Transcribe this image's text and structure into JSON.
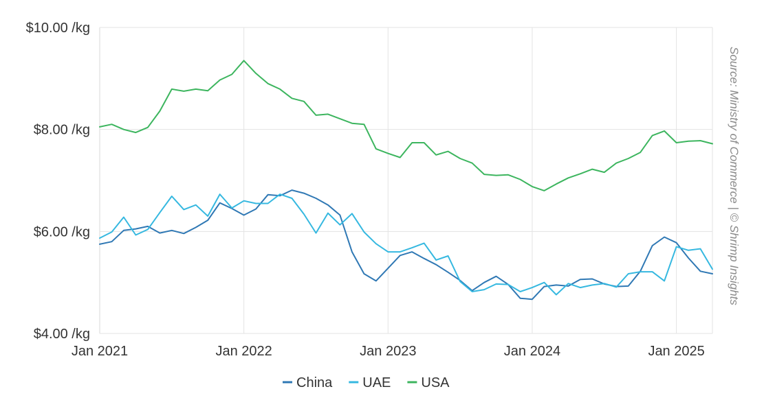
{
  "chart_data": {
    "type": "line",
    "x_ticks": [
      "Jan 2021",
      "Jan 2022",
      "Jan 2023",
      "Jan 2024",
      "Jan 2025"
    ],
    "y_ticks": [
      "$4.00 /kg",
      "$6.00 /kg",
      "$8.00 /kg",
      "$10.00 /kg"
    ],
    "ylim": [
      4,
      10
    ],
    "xlim": [
      "2021-01",
      "2025-04"
    ],
    "grid": true,
    "legend_position": "bottom",
    "source": "Source: Ministry of Commerce | © Shrimp Insights",
    "x": [
      "2021-01",
      "2021-02",
      "2021-03",
      "2021-04",
      "2021-05",
      "2021-06",
      "2021-07",
      "2021-08",
      "2021-09",
      "2021-10",
      "2021-11",
      "2021-12",
      "2022-01",
      "2022-02",
      "2022-03",
      "2022-04",
      "2022-05",
      "2022-06",
      "2022-07",
      "2022-08",
      "2022-09",
      "2022-10",
      "2022-11",
      "2022-12",
      "2023-01",
      "2023-02",
      "2023-03",
      "2023-04",
      "2023-05",
      "2023-06",
      "2023-07",
      "2023-08",
      "2023-09",
      "2023-10",
      "2023-11",
      "2023-12",
      "2024-01",
      "2024-02",
      "2024-03",
      "2024-04",
      "2024-05",
      "2024-06",
      "2024-07",
      "2024-08",
      "2024-09",
      "2024-10",
      "2024-11",
      "2024-12",
      "2025-01",
      "2025-02",
      "2025-03",
      "2025-04"
    ],
    "series": [
      {
        "name": "China",
        "color": "#2f78b4",
        "values": [
          5.75,
          5.8,
          6.02,
          6.05,
          6.1,
          5.97,
          6.02,
          5.96,
          6.08,
          6.22,
          6.56,
          6.45,
          6.32,
          6.44,
          6.72,
          6.7,
          6.81,
          6.75,
          6.65,
          6.52,
          6.32,
          5.6,
          5.17,
          5.03,
          5.28,
          5.53,
          5.6,
          5.47,
          5.35,
          5.2,
          5.04,
          4.84,
          5.0,
          5.12,
          4.96,
          4.69,
          4.67,
          4.92,
          4.95,
          4.93,
          5.06,
          5.07,
          4.97,
          4.92,
          4.93,
          5.22,
          5.72,
          5.89,
          5.78,
          5.48,
          5.22,
          5.17
        ]
      },
      {
        "name": "UAE",
        "color": "#35b8e0",
        "values": [
          5.87,
          5.99,
          6.28,
          5.93,
          6.04,
          6.37,
          6.69,
          6.43,
          6.52,
          6.3,
          6.73,
          6.46,
          6.6,
          6.55,
          6.55,
          6.73,
          6.65,
          6.34,
          5.97,
          6.36,
          6.13,
          6.35,
          5.99,
          5.76,
          5.6,
          5.6,
          5.68,
          5.77,
          5.44,
          5.52,
          5.02,
          4.82,
          4.86,
          4.97,
          4.96,
          4.82,
          4.9,
          5.0,
          4.76,
          4.98,
          4.9,
          4.95,
          4.98,
          4.91,
          5.17,
          5.21,
          5.21,
          5.03,
          5.7,
          5.63,
          5.66,
          5.26
        ]
      },
      {
        "name": "USA",
        "color": "#3cb55e",
        "values": [
          8.05,
          8.1,
          8.0,
          7.94,
          8.04,
          8.36,
          8.79,
          8.75,
          8.79,
          8.76,
          8.97,
          9.08,
          9.35,
          9.1,
          8.9,
          8.79,
          8.61,
          8.55,
          8.28,
          8.3,
          8.21,
          8.12,
          8.1,
          7.62,
          7.53,
          7.45,
          7.74,
          7.74,
          7.5,
          7.57,
          7.43,
          7.34,
          7.12,
          7.1,
          7.11,
          7.02,
          6.88,
          6.8,
          6.93,
          7.05,
          7.13,
          7.22,
          7.16,
          7.34,
          7.43,
          7.55,
          7.88,
          7.97,
          7.74,
          7.77,
          7.78,
          7.72
        ]
      }
    ]
  }
}
